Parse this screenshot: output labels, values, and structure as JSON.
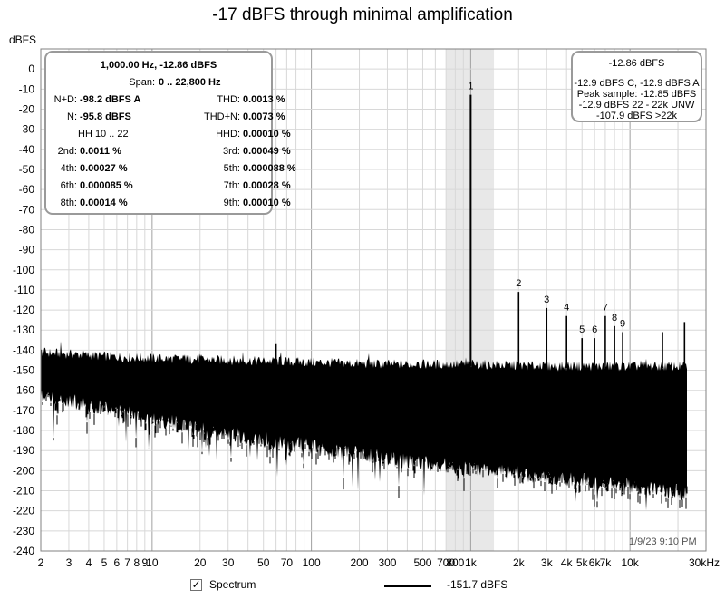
{
  "chart_data": {
    "type": "line",
    "title": "-17 dBFS through minimal amplification",
    "ylabel": "dBFS",
    "xlabel": "",
    "x_scale": "log",
    "xlim": [
      2,
      30000
    ],
    "ylim": [
      -240,
      10
    ],
    "y_ticks": [
      0,
      -10,
      -20,
      -30,
      -40,
      -50,
      -60,
      -70,
      -80,
      -90,
      -100,
      -110,
      -120,
      -130,
      -140,
      -150,
      -160,
      -170,
      -180,
      -190,
      -200,
      -210,
      -220,
      -230,
      -240
    ],
    "x_ticks": [
      {
        "v": 2,
        "label": "2"
      },
      {
        "v": 3,
        "label": "3"
      },
      {
        "v": 4,
        "label": "4"
      },
      {
        "v": 5,
        "label": "5"
      },
      {
        "v": 6,
        "label": "6"
      },
      {
        "v": 7,
        "label": "7"
      },
      {
        "v": 8,
        "label": "8"
      },
      {
        "v": 9,
        "label": "9"
      },
      {
        "v": 10,
        "label": "10"
      },
      {
        "v": 20,
        "label": "20"
      },
      {
        "v": 30,
        "label": "30"
      },
      {
        "v": 50,
        "label": "50"
      },
      {
        "v": 70,
        "label": "70"
      },
      {
        "v": 100,
        "label": "100"
      },
      {
        "v": 200,
        "label": "200"
      },
      {
        "v": 300,
        "label": "300"
      },
      {
        "v": 500,
        "label": "500"
      },
      {
        "v": 700,
        "label": "700"
      },
      {
        "v": 800,
        "label": "800"
      },
      {
        "v": 1000,
        "label": "1k"
      },
      {
        "v": 2000,
        "label": "2k"
      },
      {
        "v": 3000,
        "label": "3k"
      },
      {
        "v": 4000,
        "label": "4k"
      },
      {
        "v": 5000,
        "label": "5k"
      },
      {
        "v": 6000,
        "label": "6k"
      },
      {
        "v": 7000,
        "label": "7k"
      },
      {
        "v": 10000,
        "label": "10k"
      },
      {
        "v": 30000,
        "label": "30kHz"
      }
    ],
    "highlight_band": [
      700,
      1400
    ],
    "series": [
      {
        "name": "Spectrum",
        "color": "#000000",
        "noise_floor": [
          {
            "f": 2,
            "top": -141,
            "bottom": -158
          },
          {
            "f": 5,
            "top": -143,
            "bottom": -165
          },
          {
            "f": 10,
            "top": -144,
            "bottom": -170
          },
          {
            "f": 30,
            "top": -145,
            "bottom": -178
          },
          {
            "f": 100,
            "top": -146,
            "bottom": -184
          },
          {
            "f": 300,
            "top": -147,
            "bottom": -190
          },
          {
            "f": 1000,
            "top": -147,
            "bottom": -195
          },
          {
            "f": 3000,
            "top": -148,
            "bottom": -199
          },
          {
            "f": 10000,
            "top": -148,
            "bottom": -204
          },
          {
            "f": 22800,
            "top": -148,
            "bottom": -207
          }
        ],
        "peaks": [
          {
            "f": 1000,
            "db": -12.86,
            "label": "1"
          },
          {
            "f": 2000,
            "db": -111,
            "label": "2"
          },
          {
            "f": 3000,
            "db": -119,
            "label": "3"
          },
          {
            "f": 4000,
            "db": -123,
            "label": "4"
          },
          {
            "f": 5000,
            "db": -134,
            "label": "5"
          },
          {
            "f": 6000,
            "db": -134,
            "label": "6"
          },
          {
            "f": 7000,
            "db": -123,
            "label": "7"
          },
          {
            "f": 8000,
            "db": -128,
            "label": "8"
          },
          {
            "f": 9000,
            "db": -131,
            "label": "9"
          },
          {
            "f": 60,
            "db": -137,
            "label": ""
          },
          {
            "f": 16000,
            "db": -131,
            "label": ""
          },
          {
            "f": 22000,
            "db": -126,
            "label": ""
          }
        ]
      }
    ],
    "grid": true,
    "legend": "bottom"
  },
  "stats_box": {
    "line1": "1,000.00 Hz, -12.86 dBFS",
    "span_label": "Span:",
    "span_value": "0 .. 22,800 Hz",
    "rows": [
      {
        "l_lab": "N+D:",
        "l_val": "-98.2 dBFS A",
        "r_lab": "THD:",
        "r_val": "0.0013 %"
      },
      {
        "l_lab": "N:",
        "l_val": "-95.8 dBFS",
        "r_lab": "THD+N:",
        "r_val": "0.0073 %"
      },
      {
        "l_lab": "HH 10 .. 22",
        "l_val": "",
        "r_lab": "HHD:",
        "r_val": "0.00010 %"
      },
      {
        "l_lab": "2nd:",
        "l_val": "0.0011 %",
        "r_lab": "3rd:",
        "r_val": "0.00049 %"
      },
      {
        "l_lab": "4th:",
        "l_val": "0.00027 %",
        "r_lab": "5th:",
        "r_val": "0.000088 %"
      },
      {
        "l_lab": "6th:",
        "l_val": "0.000085 %",
        "r_lab": "7th:",
        "r_val": "0.00028 %"
      },
      {
        "l_lab": "8th:",
        "l_val": "0.00014 %",
        "r_lab": "9th:",
        "r_val": "0.00010 %"
      }
    ]
  },
  "level_box": {
    "main": "-12.86 dBFS",
    "l1": "-12.9 dBFS C, -12.9 dBFS A",
    "l2": "Peak sample: -12.85 dBFS",
    "l3": "-12.9 dBFS 22 - 22k UNW",
    "l4": "-107.9 dBFS >22k"
  },
  "timestamp": "1/9/23 9:10 PM",
  "legend": {
    "spectrum_label": "Spectrum",
    "spectrum_checked": true,
    "line_value": "-151.7 dBFS"
  }
}
